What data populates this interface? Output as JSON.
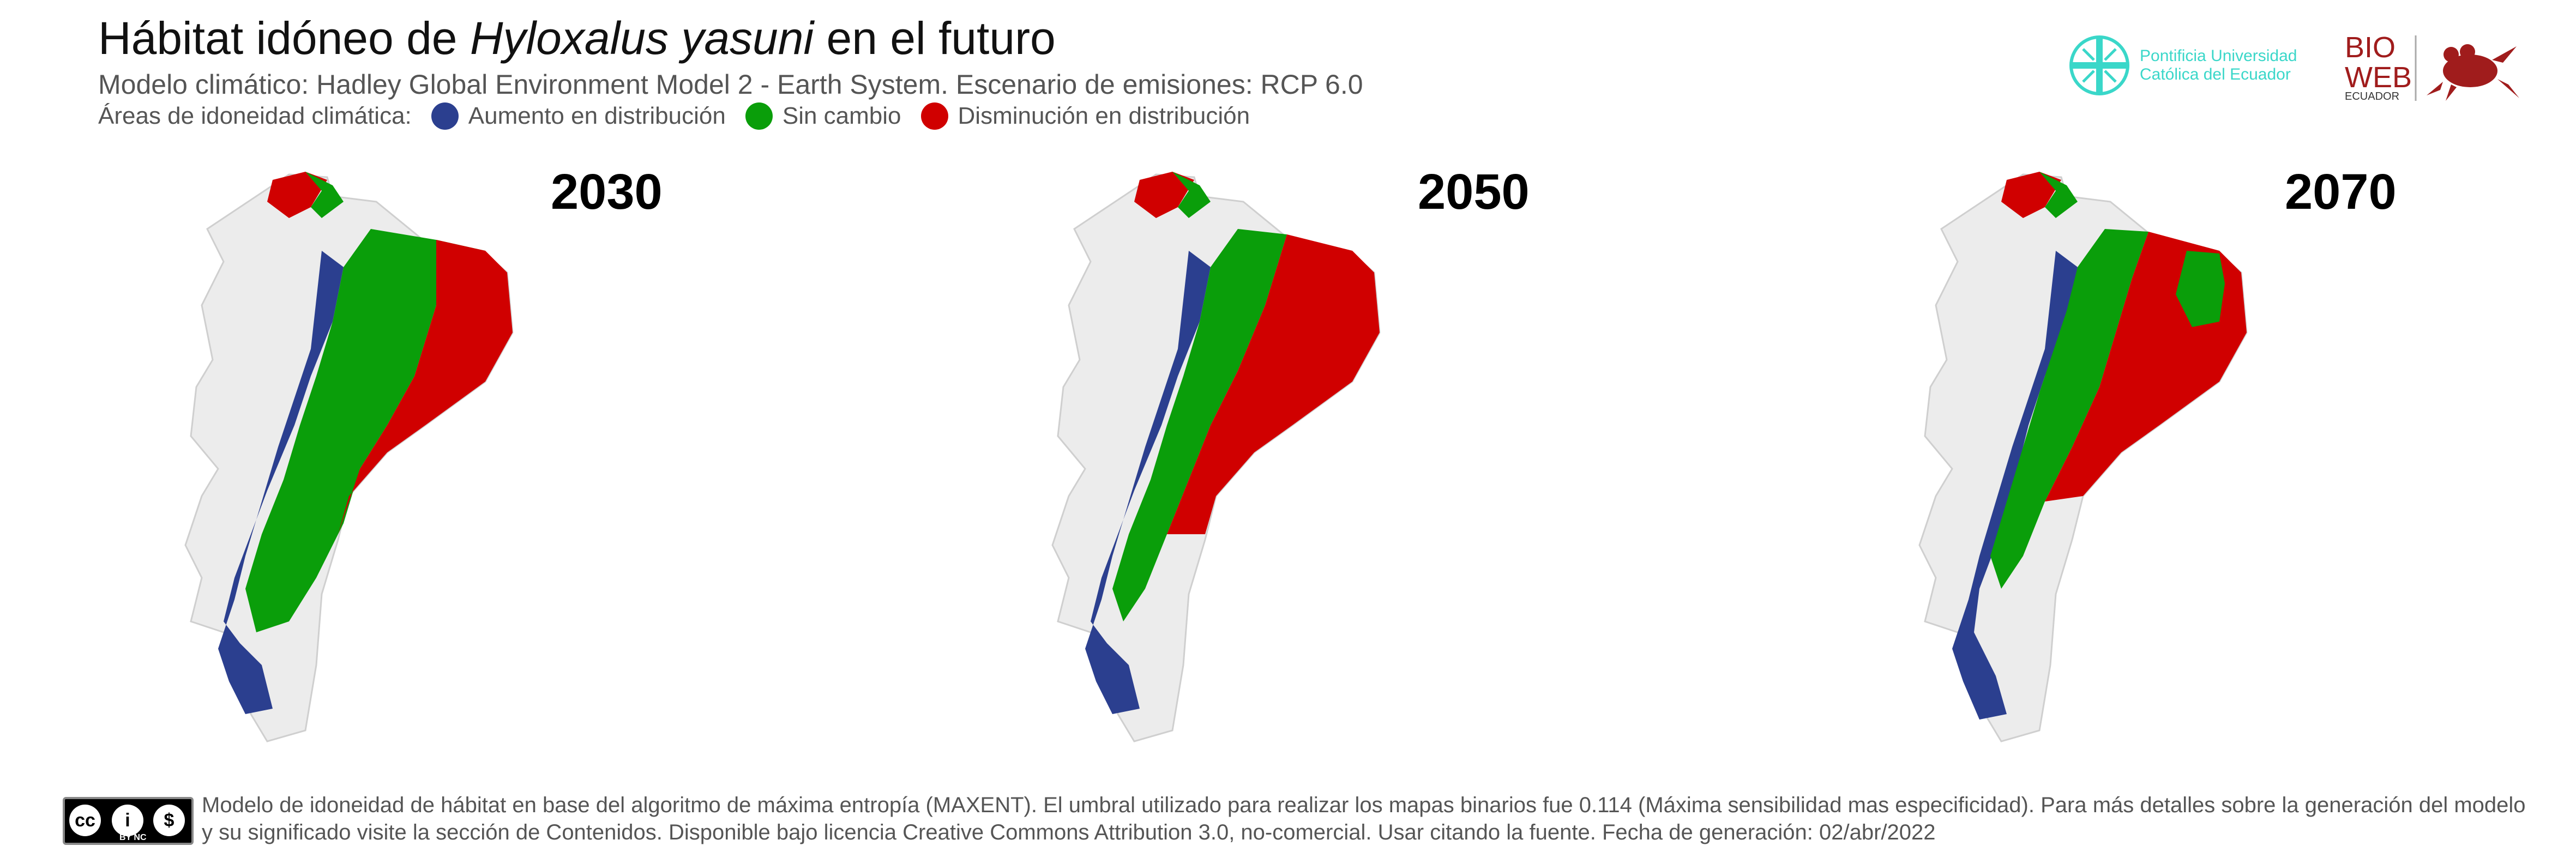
{
  "header": {
    "title_prefix": "Hábitat idóneo de ",
    "title_species": "Hyloxalus yasuni",
    "title_suffix": " en el futuro",
    "subtitle": "Modelo climático: Hadley Global Environment Model 2 - Earth System. Escenario de emisiones: RCP 6.0",
    "legend_label": "Áreas de idoneidad climática:",
    "legend": [
      {
        "label": "Aumento en distribución",
        "color": "#2b3f8f"
      },
      {
        "label": "Sin cambio",
        "color": "#0a9e0a"
      },
      {
        "label": "Disminución en distribución",
        "color": "#d00000"
      }
    ]
  },
  "logos": {
    "puce_line1": "Pontificia Universidad",
    "puce_line2": "Católica del Ecuador",
    "bio_line1": "BIO",
    "bio_line2": "WEB",
    "bio_line3": "ECUADOR"
  },
  "maps": [
    {
      "year": "2030",
      "increase": 0.2,
      "nochange": 0.5,
      "decrease": 0.3
    },
    {
      "year": "2050",
      "increase": 0.2,
      "nochange": 0.3,
      "decrease": 0.5
    },
    {
      "year": "2070",
      "increase": 0.2,
      "nochange": 0.25,
      "decrease": 0.55
    }
  ],
  "footer": {
    "license_badge": "BY NC",
    "text": "Modelo de idoneidad de hábitat en base del algoritmo de máxima entropía (MAXENT). El umbral utilizado para realizar los mapas binarios fue 0.114 (Máxima sensibilidad mas especificidad). Para más detalles sobre la generación del modelo y su significado visite la sección de Contenidos. Disponible bajo licencia Creative Commons Attribution 3.0, no-comercial. Usar citando la fuente. Fecha de generación: 02/abr/2022"
  }
}
